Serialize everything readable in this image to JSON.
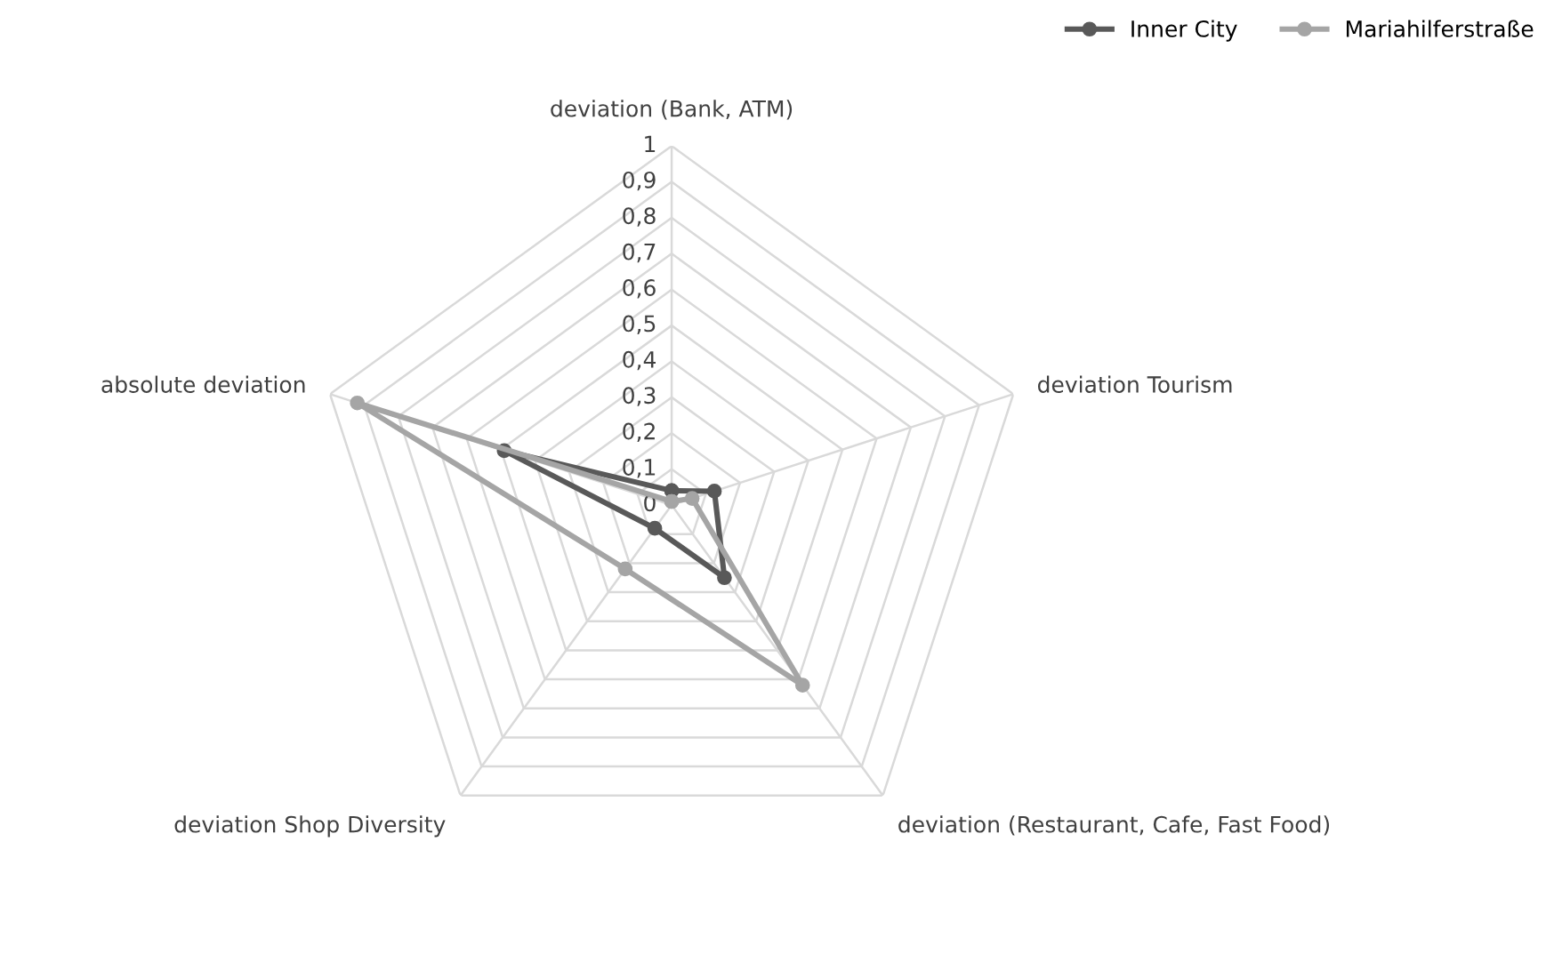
{
  "chart_data": {
    "type": "radar",
    "categories": [
      "deviation (Bank, ATM)",
      "deviation Tourism",
      "deviation (Restaurant, Cafe, Fast Food)",
      "deviation Shop Diversity",
      "absolute deviation"
    ],
    "series": [
      {
        "name": "Inner City",
        "color": "#595959",
        "values": [
          0.04,
          0.125,
          0.25,
          0.08,
          0.49
        ]
      },
      {
        "name": "Mariahilferstraße",
        "color": "#a5a5a5",
        "values": [
          0.01,
          0.06,
          0.62,
          0.22,
          0.92
        ]
      }
    ],
    "ylim": [
      0,
      1
    ],
    "yticks": [
      0,
      {
        "value": 0.1,
        "label": "0,1"
      },
      {
        "value": 0.2,
        "label": "0,2"
      },
      {
        "value": 0.3,
        "label": "0,3"
      },
      {
        "value": 0.4,
        "label": "0,4"
      },
      {
        "value": 0.5,
        "label": "0,5"
      },
      {
        "value": 0.6,
        "label": "0,6"
      },
      {
        "value": 0.7,
        "label": "0,7"
      },
      {
        "value": 0.8,
        "label": "0,8"
      },
      {
        "value": 0.9,
        "label": "0,9"
      },
      1
    ],
    "grid": true,
    "legend": "top right",
    "marker": "circle",
    "line_style": "solid"
  }
}
